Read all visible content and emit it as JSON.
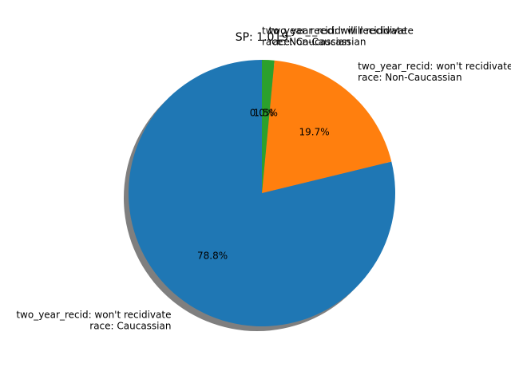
{
  "chart_data": {
    "type": "pie",
    "title": "SP: 1.019",
    "slices": [
      {
        "line1": "two_year_recid: won't recidivate",
        "line2": "race: Caucassian",
        "value": 78.8,
        "label": "78.8%",
        "color": "#1f77b4"
      },
      {
        "line1": "two_year_recid: won't recidivate",
        "line2": "race: Non-Caucassian",
        "value": 19.7,
        "label": "19.7%",
        "color": "#ff7f0e"
      },
      {
        "line1": "two_year_recid: will recidivate",
        "line2": "race: Caucassian",
        "value": 1.5,
        "label": "1.5%",
        "color": "#2ca02c"
      },
      {
        "line1": "two_year_recid: will recidivate",
        "line2": "race: Non-Caucassian",
        "value": 0.0,
        "label": "0.0%",
        "color": "#d62728"
      }
    ],
    "start_angle_deg": 90,
    "shadow": true,
    "legend": "none"
  }
}
